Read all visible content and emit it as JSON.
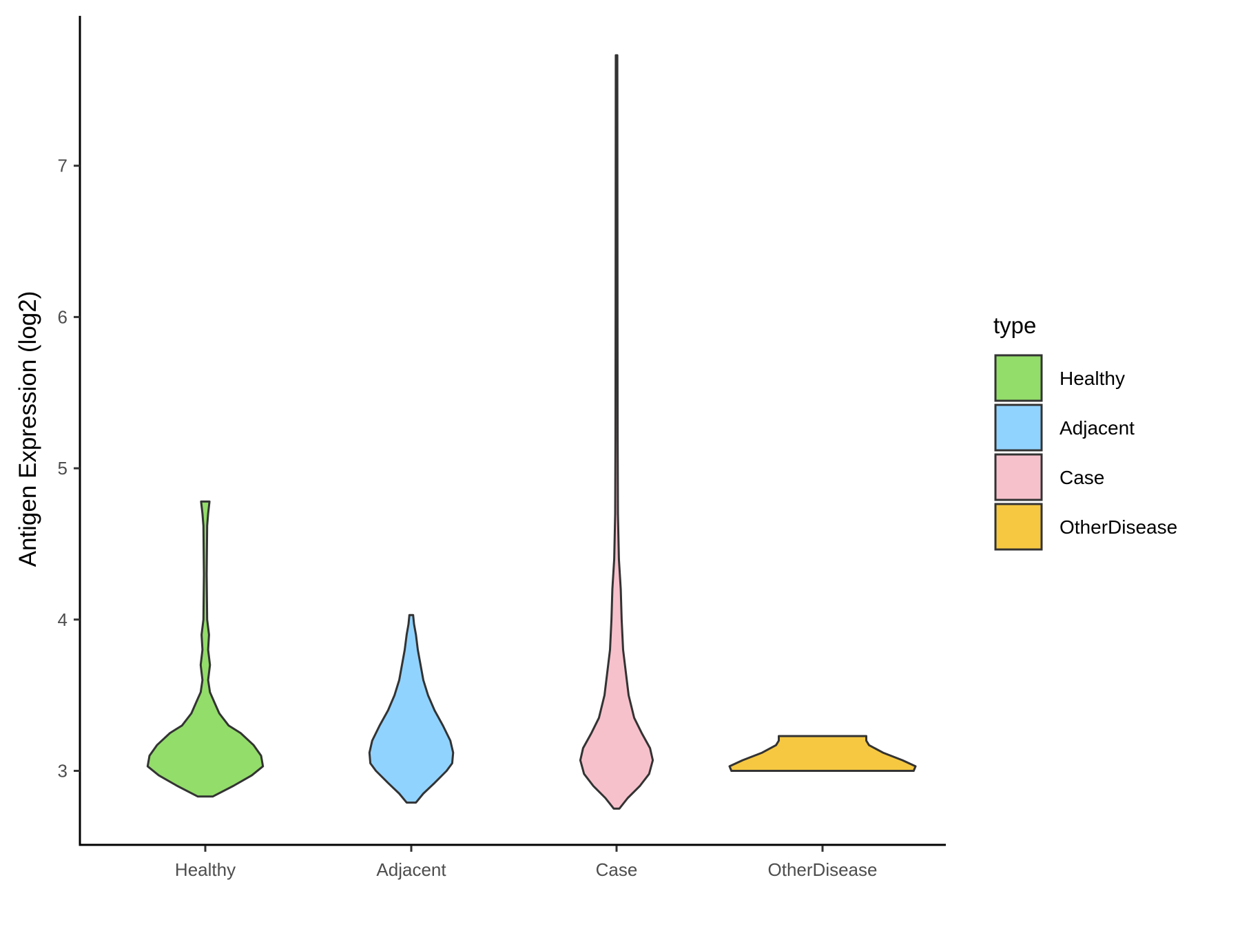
{
  "chart_data": {
    "type": "violin",
    "title": "",
    "xlabel": "",
    "ylabel": "Antigen Expression (log2)",
    "ylim": [
      2.51,
      7.99
    ],
    "yticks": [
      3,
      4,
      5,
      6,
      7
    ],
    "categories": [
      "Healthy",
      "Adjacent",
      "Case",
      "OtherDisease"
    ],
    "legend": {
      "title": "type",
      "position": "right"
    },
    "series": [
      {
        "name": "Healthy",
        "color": "#93DD6A",
        "density": [
          [
            2.83,
            0.08
          ],
          [
            2.9,
            0.3
          ],
          [
            2.97,
            0.5
          ],
          [
            3.03,
            0.62
          ],
          [
            3.1,
            0.6
          ],
          [
            3.17,
            0.52
          ],
          [
            3.25,
            0.38
          ],
          [
            3.3,
            0.25
          ],
          [
            3.38,
            0.15
          ],
          [
            3.45,
            0.1
          ],
          [
            3.52,
            0.05
          ],
          [
            3.6,
            0.03
          ],
          [
            3.7,
            0.05
          ],
          [
            3.8,
            0.03
          ],
          [
            3.9,
            0.04
          ],
          [
            4.0,
            0.02
          ],
          [
            4.3,
            0.015
          ],
          [
            4.62,
            0.02
          ],
          [
            4.7,
            0.03
          ],
          [
            4.78,
            0.045
          ]
        ]
      },
      {
        "name": "Adjacent",
        "color": "#91D3FF",
        "density": [
          [
            2.79,
            0.05
          ],
          [
            2.85,
            0.13
          ],
          [
            2.92,
            0.25
          ],
          [
            3.0,
            0.38
          ],
          [
            3.05,
            0.44
          ],
          [
            3.12,
            0.45
          ],
          [
            3.2,
            0.42
          ],
          [
            3.3,
            0.34
          ],
          [
            3.4,
            0.25
          ],
          [
            3.5,
            0.18
          ],
          [
            3.6,
            0.13
          ],
          [
            3.7,
            0.1
          ],
          [
            3.8,
            0.07
          ],
          [
            3.9,
            0.05
          ],
          [
            3.97,
            0.03
          ],
          [
            4.03,
            0.02
          ]
        ]
      },
      {
        "name": "Case",
        "color": "#F7C1CC",
        "density": [
          [
            2.75,
            0.03
          ],
          [
            2.82,
            0.12
          ],
          [
            2.9,
            0.25
          ],
          [
            2.98,
            0.35
          ],
          [
            3.07,
            0.39
          ],
          [
            3.15,
            0.36
          ],
          [
            3.25,
            0.27
          ],
          [
            3.35,
            0.19
          ],
          [
            3.5,
            0.13
          ],
          [
            3.65,
            0.1
          ],
          [
            3.8,
            0.07
          ],
          [
            4.0,
            0.055
          ],
          [
            4.2,
            0.045
          ],
          [
            4.4,
            0.025
          ],
          [
            4.7,
            0.015
          ],
          [
            5.2,
            0.012
          ],
          [
            6.0,
            0.01
          ],
          [
            7.73,
            0.008
          ]
        ]
      },
      {
        "name": "OtherDisease",
        "color": "#F6C841",
        "density": [
          [
            3.0,
            0.98
          ],
          [
            3.03,
            1.0
          ],
          [
            3.07,
            0.86
          ],
          [
            3.12,
            0.65
          ],
          [
            3.17,
            0.5
          ],
          [
            3.2,
            0.47
          ],
          [
            3.23,
            0.47
          ]
        ]
      }
    ]
  }
}
